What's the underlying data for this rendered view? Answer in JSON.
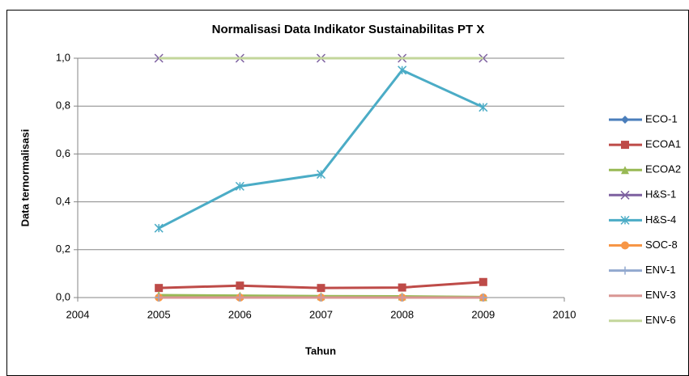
{
  "chart_data": {
    "type": "line",
    "title": "Normalisasi Data Indikator Sustainabilitas PT X",
    "xlabel": "Tahun",
    "ylabel": "Data ternormalisasi",
    "x": [
      2005,
      2006,
      2007,
      2008,
      2009
    ],
    "xlim": [
      2004,
      2010
    ],
    "xticks": [
      2004,
      2005,
      2006,
      2007,
      2008,
      2009,
      2010
    ],
    "ylim": [
      0,
      1
    ],
    "yticks": [
      {
        "value": 0,
        "label": "0,0"
      },
      {
        "value": 0.2,
        "label": "0,2"
      },
      {
        "value": 0.4,
        "label": "0,4"
      },
      {
        "value": 0.6,
        "label": "0,6"
      },
      {
        "value": 0.8,
        "label": "0,8"
      },
      {
        "value": 1,
        "label": "1,0"
      }
    ],
    "grid": true,
    "legend": "right",
    "series": [
      {
        "name": "ECO-1",
        "color": "#4a7ebb",
        "marker": "diamond",
        "values": [
          0,
          0,
          0,
          0,
          0
        ]
      },
      {
        "name": "ECOA1",
        "color": "#be4b48",
        "marker": "square",
        "values": [
          0.04,
          0.05,
          0.04,
          0.042,
          0.065
        ]
      },
      {
        "name": "ECOA2",
        "color": "#98b954",
        "marker": "triangle",
        "values": [
          0.01,
          0.008,
          0.006,
          0.005,
          0.002
        ]
      },
      {
        "name": "H&S-1",
        "color": "#7d60a0",
        "marker": "x",
        "values": [
          1,
          1,
          1,
          1,
          1
        ]
      },
      {
        "name": "H&S-4",
        "color": "#4bacc6",
        "marker": "star",
        "values": [
          0.29,
          0.465,
          0.515,
          0.95,
          0.795
        ]
      },
      {
        "name": "SOC-8",
        "color": "#f79646",
        "marker": "circle",
        "values": [
          0,
          0,
          0,
          0,
          0
        ]
      },
      {
        "name": "ENV-1",
        "color": "#92a9cf",
        "marker": "plus",
        "values": [
          0,
          0,
          0,
          0,
          0
        ]
      },
      {
        "name": "ENV-3",
        "color": "#d99694",
        "marker": "none",
        "values": [
          0,
          0,
          0,
          0,
          0
        ]
      },
      {
        "name": "ENV-6",
        "color": "#c3d69b",
        "marker": "none",
        "values": [
          1,
          1,
          1,
          1,
          1
        ]
      }
    ]
  }
}
